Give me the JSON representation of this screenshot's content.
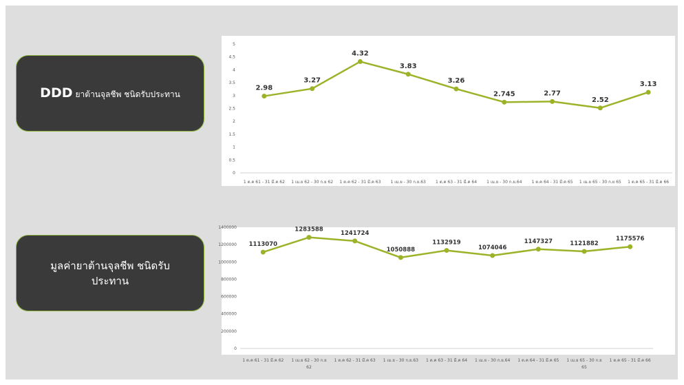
{
  "labels": {
    "box1_big": "DDD",
    "box1_small": "ยาต้านจุลชีพ ชนิดรับประทาน",
    "box2_text": "มูลค่ายาต้านจุลชีพ ชนิดรับประทาน"
  },
  "colors": {
    "line": "#9db228",
    "box_bg": "#3a3a3a",
    "box_border": "#8cb43a",
    "canvas_bg": "#dedede"
  },
  "chart_data": [
    {
      "type": "line",
      "categories": [
        "1 ต.ค 61 - 31 มี.ค 62",
        "1 เม.ย 62 - 30 ก.ย 62",
        "1 ต.ค 62 - 31 มี.ค 63",
        "1 เม.ย - 30 ก.ย.63",
        "1 ต.ค 63 - 31 มี.ค 64",
        "1 เม.ย - 30 ก.ย.64",
        "1 ต.ค 64 - 31 มี.ค 65",
        "1 เม.ย 65 - 30 ก.ย 65",
        "1 ต.ค 65 - 31 มี.ค 66"
      ],
      "values": [
        2.98,
        3.27,
        4.32,
        3.83,
        3.26,
        2.745,
        2.77,
        2.52,
        3.13
      ],
      "value_labels": [
        "2.98",
        "3.27",
        "4.32",
        "3.83",
        "3.26",
        "2.745",
        "2.77",
        "2.52",
        "3.13"
      ],
      "ylim": [
        0,
        5
      ],
      "yticks": [
        "0",
        "0.5",
        "1",
        "1.5",
        "2",
        "2.5",
        "3",
        "3.5",
        "4",
        "4.5",
        "5"
      ],
      "grid": false
    },
    {
      "type": "line",
      "categories": [
        "1 ต.ค 61 - 31 มี.ค 62",
        "1 เม.ย 62 - 30 ก.ย 62",
        "1 ต.ค 62 - 31 มี.ค 63",
        "1 เม.ย - 30 ก.ย.63",
        "1 ต.ค 63 - 31 มี.ค 64",
        "1 เม.ย - 30 ก.ย.64",
        "1 ต.ค 64 - 31 มี.ค 65",
        "1 เม.ย 65 - 30 ก.ย 65",
        "1 ต.ค 65 - 31 มี.ค 66"
      ],
      "values": [
        1113070,
        1283588,
        1241724,
        1050888,
        1132919,
        1074046,
        1147327,
        1121882,
        1175576
      ],
      "value_labels": [
        "1113070",
        "1283588",
        "1241724",
        "1050888",
        "1132919",
        "1074046",
        "1147327",
        "1121882",
        "1175576"
      ],
      "ylim": [
        0,
        1400000
      ],
      "yticks": [
        "0",
        "200000",
        "400000",
        "600000",
        "800000",
        "1000000",
        "1200000",
        "1400000"
      ],
      "grid": false
    }
  ]
}
